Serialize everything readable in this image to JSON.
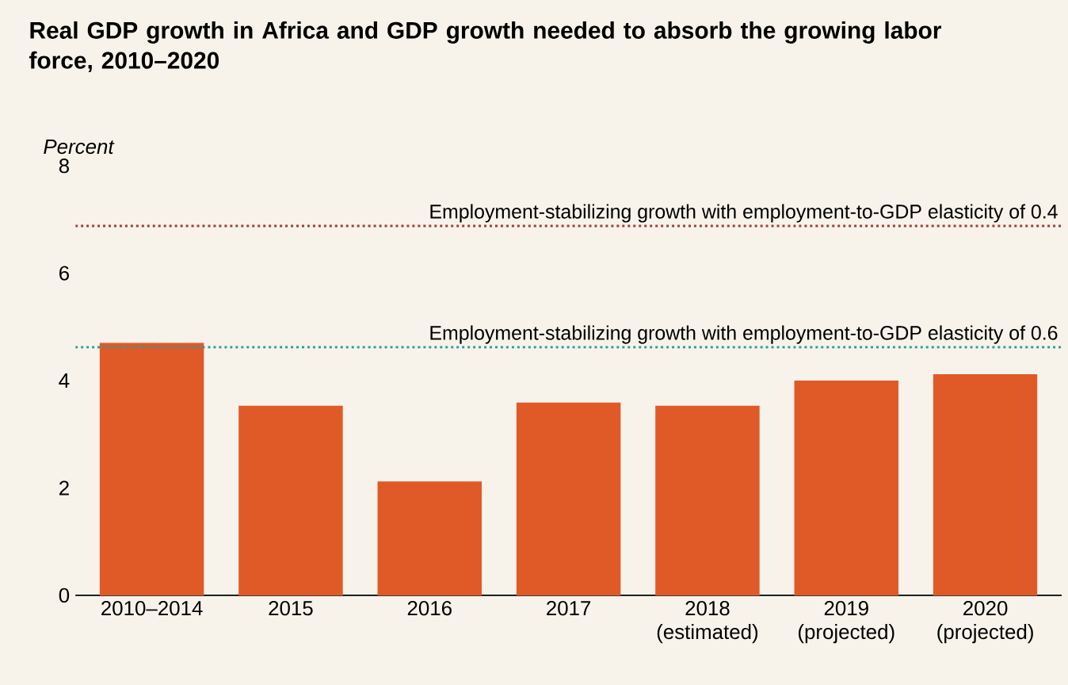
{
  "chart_data": {
    "type": "bar",
    "title": "Real GDP growth in Africa and GDP growth needed to absorb the growing labor force, 2010–2020",
    "ylabel": "Percent",
    "categories": [
      "2010–2014",
      "2015",
      "2016",
      "2017",
      "2018 (estimated)",
      "2019 (projected)",
      "2020 (projected)"
    ],
    "values": [
      4.7,
      3.53,
      2.12,
      3.59,
      3.53,
      4.0,
      4.12
    ],
    "color": "#e05a28",
    "ylim": [
      0,
      8
    ],
    "yticks": [
      0,
      2,
      4,
      6,
      8
    ],
    "grid": false,
    "ref_lines": [
      {
        "axis": "y",
        "value": 6.88,
        "label": "Employment-stabilizing growth with employment-to-GDP elasticity of 0.4",
        "color": "#a33a3a",
        "line_style": "dotted"
      },
      {
        "axis": "y",
        "value": 4.62,
        "label": "Employment-stabilizing growth with employment-to-GDP elasticity of 0.6",
        "color": "#2f9a9a",
        "line_style": "dotted"
      }
    ]
  }
}
